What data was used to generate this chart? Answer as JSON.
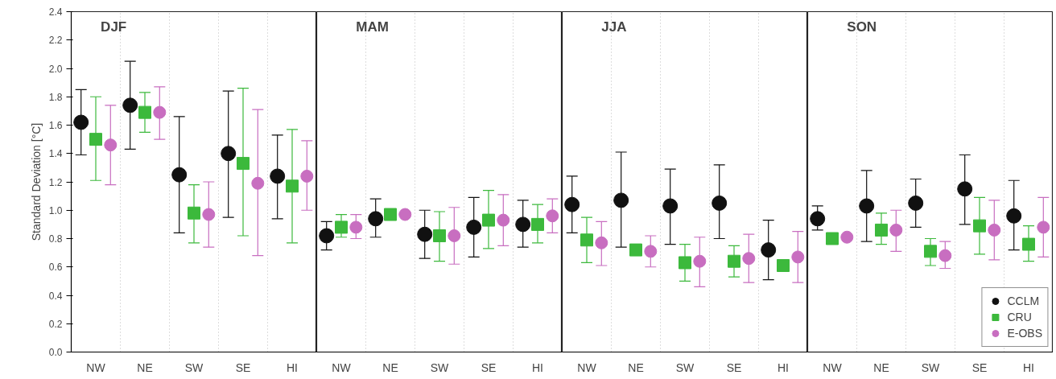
{
  "chart_data": [
    {
      "type": "scatter",
      "title": "DJF",
      "ylabel": "Standard Deviation [°C]",
      "categories": [
        "NW",
        "NE",
        "SW",
        "SE",
        "HI"
      ],
      "ylim": [
        0,
        2.4
      ],
      "yticks": [
        {
          "value": 0,
          "label": "0.0"
        },
        0.2,
        0.4,
        0.6,
        0.8,
        {
          "value": 1,
          "label": "1.0"
        },
        1.2,
        1.4,
        1.6,
        1.8,
        {
          "value": 2,
          "label": "2.0"
        },
        2.2,
        2.4
      ],
      "grid": "x",
      "series": [
        {
          "color": "#111111",
          "marker": "circle",
          "values": [
            1.62,
            1.74,
            1.25,
            1.4,
            1.24
          ],
          "errors": [
            [
              1.39,
              1.85
            ],
            [
              1.43,
              2.05
            ],
            [
              0.84,
              1.66
            ],
            [
              0.95,
              1.84
            ],
            [
              0.94,
              1.53
            ]
          ]
        },
        {
          "color": "#3cb93c",
          "marker": "square",
          "values": [
            1.5,
            1.69,
            0.98,
            1.33,
            1.17
          ],
          "errors": [
            [
              1.21,
              1.8
            ],
            [
              1.55,
              1.83
            ],
            [
              0.77,
              1.18
            ],
            [
              0.82,
              1.86
            ],
            [
              0.77,
              1.57
            ]
          ]
        },
        {
          "color": "#c86ec0",
          "marker": "circle",
          "values": [
            1.46,
            1.69,
            0.97,
            1.19,
            1.24
          ],
          "errors": [
            [
              1.18,
              1.74
            ],
            [
              1.5,
              1.87
            ],
            [
              0.74,
              1.2
            ],
            [
              0.68,
              1.71
            ],
            [
              1.0,
              1.49
            ]
          ]
        }
      ]
    },
    {
      "type": "scatter",
      "title": "MAM",
      "categories": [
        "NW",
        "NE",
        "SW",
        "SE",
        "HI"
      ],
      "ylim": [
        0,
        2.4
      ],
      "tick_labels": "x",
      "grid": "x",
      "series": [
        {
          "color": "#111111",
          "marker": "circle",
          "values": [
            0.82,
            0.94,
            0.83,
            0.88,
            0.9
          ],
          "errors": [
            [
              0.72,
              0.92
            ],
            [
              0.81,
              1.08
            ],
            [
              0.66,
              1.0
            ],
            [
              0.67,
              1.09
            ],
            [
              0.74,
              1.07
            ]
          ]
        },
        {
          "color": "#3cb93c",
          "marker": "square",
          "values": [
            0.88,
            0.97,
            0.82,
            0.93,
            0.9
          ],
          "errors": [
            [
              0.81,
              0.97
            ],
            null,
            [
              0.64,
              0.99
            ],
            [
              0.73,
              1.14
            ],
            [
              0.77,
              1.04
            ]
          ]
        },
        {
          "color": "#c86ec0",
          "marker": "circle",
          "values": [
            0.88,
            0.97,
            0.82,
            0.93,
            0.96
          ],
          "errors": [
            [
              0.8,
              0.97
            ],
            null,
            [
              0.62,
              1.02
            ],
            [
              0.75,
              1.11
            ],
            [
              0.84,
              1.08
            ]
          ]
        }
      ]
    },
    {
      "type": "scatter",
      "title": "JJA",
      "categories": [
        "NW",
        "NE",
        "SW",
        "SE",
        "HI"
      ],
      "ylim": [
        0,
        2.4
      ],
      "tick_labels": "x",
      "grid": "x",
      "series": [
        {
          "color": "#111111",
          "marker": "circle",
          "values": [
            1.04,
            1.07,
            1.03,
            1.05,
            0.72
          ],
          "errors": [
            [
              0.84,
              1.24
            ],
            [
              0.74,
              1.41
            ],
            [
              0.76,
              1.29
            ],
            [
              0.8,
              1.32
            ],
            [
              0.51,
              0.93
            ]
          ]
        },
        {
          "color": "#3cb93c",
          "marker": "square",
          "values": [
            0.79,
            0.72,
            0.63,
            0.64,
            0.61
          ],
          "errors": [
            [
              0.63,
              0.95
            ],
            null,
            [
              0.5,
              0.76
            ],
            [
              0.53,
              0.75
            ],
            null
          ]
        },
        {
          "color": "#c86ec0",
          "marker": "circle",
          "values": [
            0.77,
            0.71,
            0.64,
            0.66,
            0.67
          ],
          "errors": [
            [
              0.61,
              0.92
            ],
            [
              0.6,
              0.82
            ],
            [
              0.46,
              0.81
            ],
            [
              0.49,
              0.83
            ],
            [
              0.49,
              0.85
            ]
          ]
        }
      ]
    },
    {
      "type": "scatter",
      "title": "SON",
      "categories": [
        "NW",
        "NE",
        "SW",
        "SE",
        "HI"
      ],
      "ylim": [
        0,
        2.4
      ],
      "tick_labels": "x",
      "grid": "x",
      "legend": "bottom right",
      "series": [
        {
          "name": "CCLM",
          "color": "#111111",
          "marker": "circle",
          "values": [
            0.94,
            1.03,
            1.05,
            1.15,
            0.96
          ],
          "errors": [
            [
              0.86,
              1.03
            ],
            [
              0.78,
              1.28
            ],
            [
              0.88,
              1.22
            ],
            [
              0.9,
              1.39
            ],
            [
              0.72,
              1.21
            ]
          ]
        },
        {
          "name": "CRU",
          "color": "#3cb93c",
          "marker": "square",
          "values": [
            0.8,
            0.86,
            0.71,
            0.89,
            0.76
          ],
          "errors": [
            null,
            [
              0.76,
              0.98
            ],
            [
              0.61,
              0.8
            ],
            [
              0.69,
              1.09
            ],
            [
              0.64,
              0.89
            ]
          ]
        },
        {
          "name": "E-OBS",
          "color": "#c86ec0",
          "marker": "circle",
          "values": [
            0.81,
            0.86,
            0.68,
            0.86,
            0.88
          ],
          "errors": [
            null,
            [
              0.71,
              1.0
            ],
            [
              0.59,
              0.78
            ],
            [
              0.65,
              1.07
            ],
            [
              0.67,
              1.09
            ]
          ]
        }
      ]
    }
  ]
}
